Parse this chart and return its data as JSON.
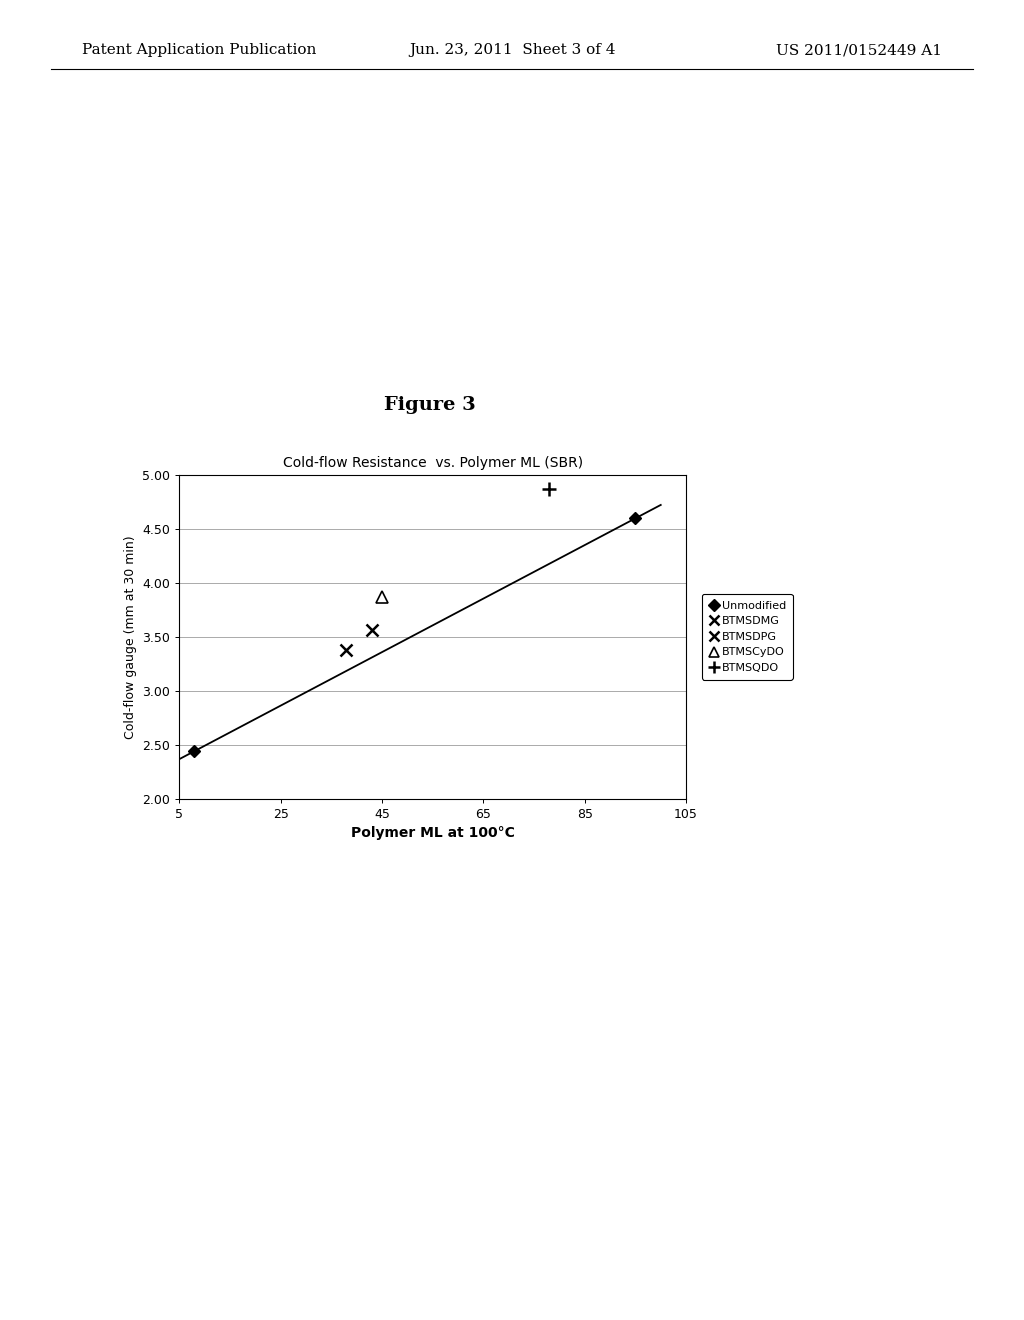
{
  "title": "Cold-flow Resistance  vs. Polymer ML (SBR)",
  "figure_label": "Figure 3",
  "xlabel": "Polymer ML at 100°C",
  "ylabel": "Cold-flow gauge (mm at 30 min)",
  "xlim": [
    5,
    105
  ],
  "ylim": [
    2.0,
    5.0
  ],
  "xticks": [
    5,
    25,
    45,
    65,
    85,
    105
  ],
  "yticks": [
    2.0,
    2.5,
    3.0,
    3.5,
    4.0,
    4.5,
    5.0
  ],
  "background_color": "#ffffff",
  "series": [
    {
      "name": "Unmodified",
      "x": [
        8,
        95
      ],
      "y": [
        2.44,
        4.6
      ],
      "marker": "D",
      "markersize": 6,
      "color": "#000000"
    },
    {
      "name": "BTMSDMG",
      "x": [
        38
      ],
      "y": [
        3.38
      ],
      "marker": "x",
      "markersize": 8,
      "color": "#000000"
    },
    {
      "name": "BTMSDPG",
      "x": [
        43
      ],
      "y": [
        3.56
      ],
      "marker": "x",
      "markersize": 8,
      "color": "#000000"
    },
    {
      "name": "BTMSCyDO",
      "x": [
        45
      ],
      "y": [
        3.87
      ],
      "marker": "^",
      "markersize": 8,
      "color": "#000000"
    },
    {
      "name": "BTMSQDO",
      "x": [
        78
      ],
      "y": [
        4.87
      ],
      "marker": "+",
      "markersize": 10,
      "color": "#000000"
    }
  ],
  "trendline_color": "#000000",
  "trendline_linewidth": 1.3,
  "trendline_x1": 8,
  "trendline_y1": 2.44,
  "trendline_x2": 95,
  "trendline_y2": 4.6,
  "legend_labels": [
    "Unmodified",
    "BTMSDMG",
    "BTMSDPG",
    "BTMSCyDO",
    "BTMSQDO"
  ],
  "header_left": "Patent Application Publication",
  "header_center": "Jun. 23, 2011  Sheet 3 of 4",
  "header_right": "US 2011/0152449 A1",
  "header_fontsize": 11,
  "figure_label_fontsize": 14,
  "chart_title_fontsize": 10,
  "axis_label_fontsize": 9,
  "tick_fontsize": 9,
  "legend_fontsize": 8
}
